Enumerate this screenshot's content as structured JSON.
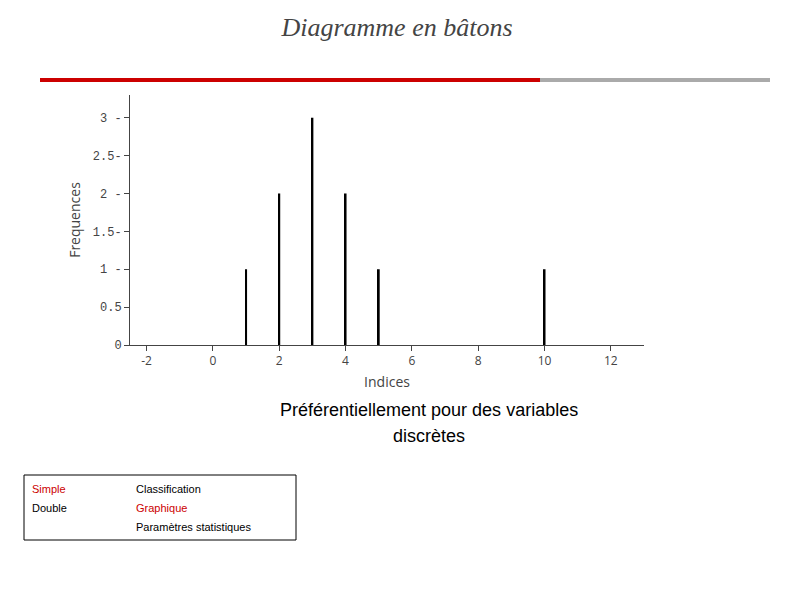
{
  "chart_data": {
    "type": "bar",
    "title": "Diagramme en bâtons",
    "subtitle": [
      "Préférentiellement pour des variables",
      "discrètes"
    ],
    "x": [
      1,
      2,
      3,
      4,
      5,
      10
    ],
    "values": [
      1,
      2,
      3,
      2,
      1,
      1
    ],
    "color": "#000000",
    "xlabel": "Indices",
    "ylabel": "Frequences",
    "xlim": [
      -2.5,
      13
    ],
    "ylim": [
      0,
      3.3
    ],
    "xticks": [
      -2,
      0,
      2,
      4,
      6,
      8,
      10,
      12
    ],
    "yticks": [
      0,
      0.5,
      {
        "value": 1,
        "label": "1 -"
      },
      {
        "value": 1.5,
        "label": "1.5-"
      },
      {
        "value": 2,
        "label": "2 -"
      },
      {
        "value": 2.5,
        "label": "2.5-"
      },
      {
        "value": 3,
        "label": "3 -"
      }
    ],
    "grid": false,
    "annotations": [
      [
        {
          "text": "Simple",
          "color": "#cc0000"
        },
        {
          "text": "Double",
          "color": "#000000"
        }
      ],
      [
        {
          "text": "Classification",
          "color": "#000000"
        },
        {
          "text": "Graphique",
          "color": "#cc0000"
        },
        {
          "text": "Paramètres statistiques",
          "color": "#000000"
        }
      ]
    ]
  }
}
